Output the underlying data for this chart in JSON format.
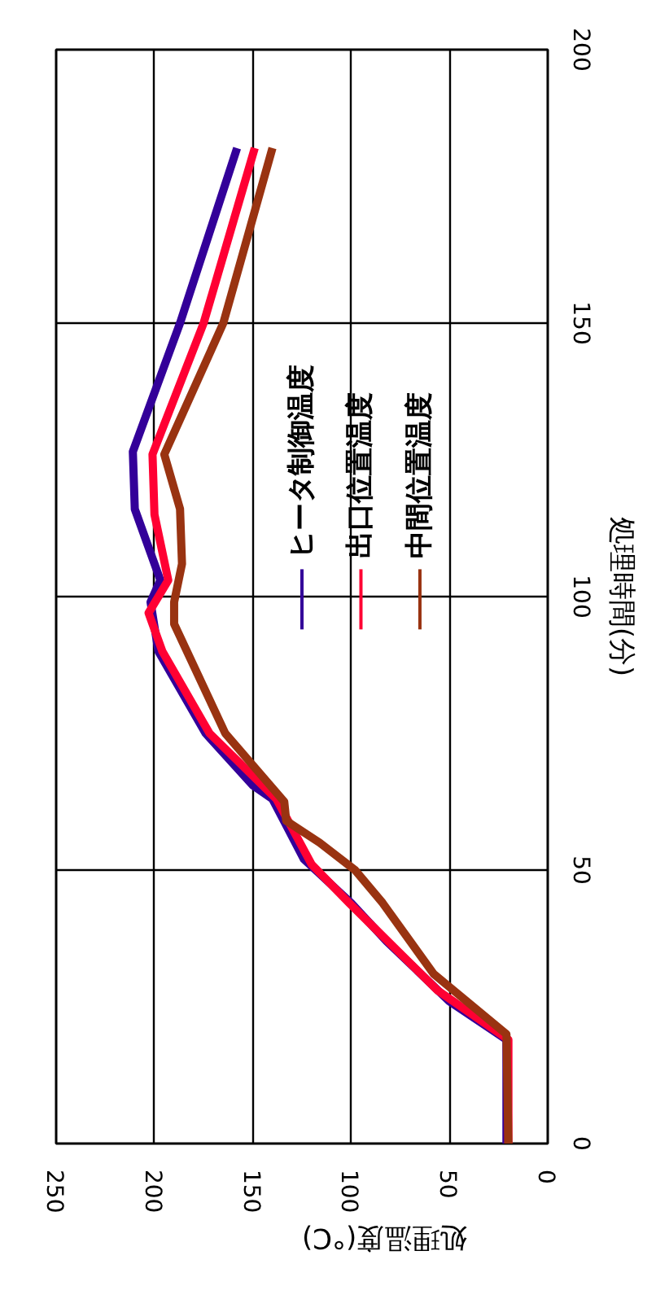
{
  "chart_data": {
    "type": "line",
    "xlabel": "処理温度(°C)",
    "ylabel": "処理時間(分)",
    "xlim": [
      250,
      0
    ],
    "xticks": [
      250,
      200,
      150,
      100,
      50,
      0
    ],
    "ylim": [
      0,
      200
    ],
    "yticks": [
      0,
      50,
      100,
      150,
      200
    ],
    "grid": true,
    "legend": "right",
    "line_style": "solid",
    "series": [
      {
        "name": "ヒータ制御温度",
        "color": "#330099",
        "x": [
          21,
          21,
          50,
          82,
          100,
          124,
          140,
          150,
          174,
          198,
          202,
          197,
          210,
          211,
          187,
          158
        ],
        "values": [
          0,
          19,
          26,
          37,
          44,
          52,
          63,
          65.5,
          75,
          90,
          99,
          103,
          116,
          126.5,
          150,
          182
        ]
      },
      {
        "name": "出口位置温度",
        "color": "#ff0033",
        "x": [
          20,
          20,
          56,
          101,
          120,
          138,
          172,
          196,
          203,
          193,
          200,
          201,
          175,
          149
        ],
        "values": [
          0,
          19,
          28,
          44,
          51,
          63,
          75,
          90,
          97,
          103,
          115,
          126,
          150,
          182
        ]
      },
      {
        "name": "中間位置温度",
        "color": "#993311",
        "x": [
          20,
          21,
          58,
          84,
          98,
          116,
          133,
          134,
          164,
          190,
          190,
          186,
          187,
          195,
          165,
          140
        ],
        "values": [
          0,
          20,
          31,
          44,
          50,
          55,
          59,
          62.5,
          75,
          95,
          99,
          106,
          116,
          126,
          150,
          182
        ]
      }
    ]
  }
}
